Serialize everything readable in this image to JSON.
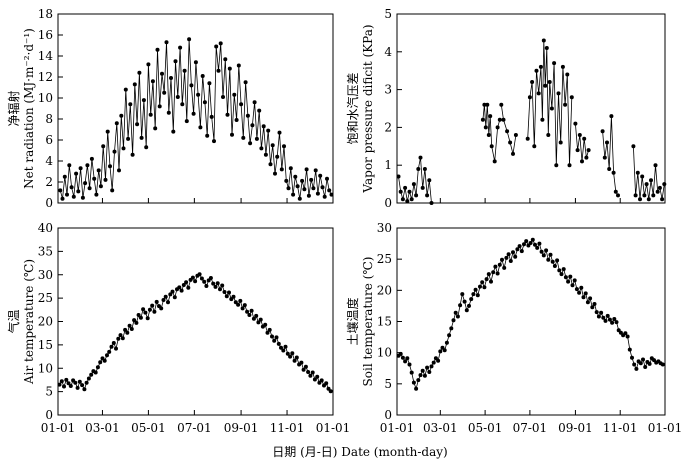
{
  "figure": {
    "shared_xlabel": "日期 (月-日) Date (month-day)",
    "tick_labels": [
      "01-01",
      "03-01",
      "05-01",
      "07-01",
      "09-01",
      "11-01",
      "01-01"
    ]
  },
  "chart_data": [
    {
      "id": "net-radiation",
      "type": "line",
      "ylabel_cn": "净辐射",
      "ylabel_en": "Net radiation (MJ·m⁻²·d⁻¹)",
      "ylim": [
        0,
        18
      ],
      "yticks": [
        0,
        2,
        4,
        6,
        8,
        10,
        12,
        14,
        16,
        18
      ],
      "x_labels": [
        "01-01",
        "03-01",
        "05-01",
        "07-01",
        "09-01",
        "11-01",
        "01-01"
      ],
      "x_label_doy": [
        0,
        59,
        120,
        181,
        243,
        304,
        365
      ],
      "series": [
        {
          "x": [
            3,
            6,
            9,
            12,
            15,
            18,
            21,
            24,
            27,
            30,
            33,
            36,
            39,
            42,
            45,
            48,
            51,
            54,
            57,
            60,
            63,
            66,
            69,
            72,
            75,
            78,
            81,
            84,
            87,
            90,
            93,
            96,
            99,
            102,
            105,
            108,
            111,
            114,
            117,
            120,
            123,
            126,
            129,
            132,
            135,
            138,
            141,
            144,
            147,
            150,
            153,
            156,
            159,
            162,
            165,
            168,
            171,
            174,
            177,
            180,
            183,
            186,
            189,
            192,
            195,
            198,
            201,
            204,
            207,
            210,
            213,
            216,
            219,
            222,
            225,
            228,
            231,
            234,
            237,
            240,
            243,
            246,
            249,
            252,
            255,
            258,
            261,
            264,
            267,
            270,
            273,
            276,
            279,
            282,
            285,
            288,
            291,
            294,
            297,
            300,
            303,
            306,
            309,
            312,
            315,
            318,
            321,
            324,
            327,
            330,
            333,
            336,
            339,
            342,
            345,
            348,
            351,
            354,
            357,
            360,
            363
          ],
          "y": [
            1.2,
            0.4,
            2.5,
            0.8,
            3.6,
            1.5,
            0.6,
            2.8,
            1.1,
            3.3,
            0.5,
            1.9,
            3.6,
            1.4,
            4.2,
            2.3,
            0.8,
            3.1,
            1.6,
            5.4,
            2.2,
            6.8,
            3.5,
            1.2,
            4.9,
            7.6,
            3.1,
            8.3,
            5.2,
            10.8,
            6.1,
            9.4,
            4.6,
            11.3,
            7.5,
            12.4,
            6.2,
            9.8,
            5.3,
            13.2,
            8.4,
            11.6,
            7.1,
            14.6,
            9.2,
            12.3,
            10.5,
            15.3,
            8.6,
            11.9,
            6.8,
            13.5,
            10.1,
            14.8,
            9.4,
            12.6,
            7.8,
            15.6,
            11.2,
            8.5,
            13.4,
            10.3,
            7.2,
            12.1,
            9.6,
            6.4,
            11.4,
            8.2,
            5.9,
            14.9,
            12.6,
            15.2,
            10.1,
            13.7,
            8.4,
            12.8,
            6.5,
            10.3,
            7.9,
            13.1,
            9.4,
            6.2,
            11.5,
            8.3,
            5.7,
            7.4,
            9.6,
            6.1,
            8.8,
            5.2,
            7.3,
            4.6,
            6.9,
            3.7,
            5.5,
            2.8,
            4.4,
            6.7,
            3.2,
            5.4,
            2.1,
            1.4,
            3.3,
            0.8,
            2.5,
            1.6,
            0.4,
            2.1,
            1.3,
            3.2,
            0.7,
            2.2,
            1.4,
            3.1,
            0.9,
            2.6,
            1.5,
            0.6,
            2.3,
            1.2,
            0.8
          ]
        }
      ]
    },
    {
      "id": "vapor-pressure-deficit",
      "type": "line",
      "ylabel_cn": "饱和水汽压差",
      "ylabel_en": "Vapor pressure dificit (KPa)",
      "ylim": [
        0,
        5
      ],
      "yticks": [
        0,
        1,
        2,
        3,
        4,
        5
      ],
      "x_labels": [
        "01-01",
        "03-01",
        "05-01",
        "07-01",
        "09-01",
        "11-01",
        "01-01"
      ],
      "x_label_doy": [
        0,
        59,
        120,
        181,
        243,
        304,
        365
      ],
      "series": [
        {
          "segments": [
            {
              "x": [
                2,
                5,
                8,
                11,
                14,
                17,
                20,
                23,
                26,
                29,
                32,
                35,
                38,
                41,
                44,
                47
              ],
              "y": [
                0.7,
                0.3,
                0.1,
                0.4,
                0.05,
                0.3,
                0.1,
                0.5,
                0.2,
                0.9,
                1.2,
                0.4,
                0.9,
                0.2,
                0.6,
                0.0
              ]
            },
            {
              "x": [
                117,
                119,
                121,
                123,
                125,
                127,
                129,
                133,
                137,
                140
              ],
              "y": [
                2.2,
                2.6,
                2.0,
                2.6,
                1.8,
                2.3,
                1.5,
                1.1,
                2.0,
                2.2
              ]
            },
            {
              "x": [
                142,
                145,
                150,
                154,
                158,
                162
              ],
              "y": [
                2.6,
                2.2,
                1.9,
                1.6,
                1.3,
                1.8
              ]
            },
            {
              "x": [
                178,
                181,
                184,
                187,
                190,
                193,
                196,
                198,
                200,
                202,
                204,
                206,
                208,
                211,
                214,
                217,
                220,
                223,
                226,
                229,
                232,
                235,
                238
              ],
              "y": [
                1.7,
                2.8,
                3.2,
                1.5,
                3.5,
                2.9,
                3.6,
                2.2,
                4.3,
                3.1,
                4.1,
                1.8,
                3.2,
                2.5,
                3.7,
                1.0,
                2.9,
                1.6,
                3.6,
                2.6,
                3.4,
                1.0,
                2.8
              ]
            },
            {
              "x": [
                243,
                246,
                249,
                252,
                255,
                258,
                261
              ],
              "y": [
                2.1,
                1.4,
                1.8,
                1.1,
                1.7,
                1.2,
                1.4
              ]
            },
            {
              "x": [
                280,
                283,
                286,
                289,
                292,
                295,
                298,
                301
              ],
              "y": [
                1.9,
                1.2,
                1.6,
                0.9,
                2.3,
                0.8,
                0.3,
                0.2
              ]
            },
            {
              "x": [
                322,
                325,
                328,
                331,
                334,
                337,
                340,
                343,
                346,
                349,
                352,
                355,
                358,
                361,
                364
              ],
              "y": [
                1.5,
                0.2,
                0.8,
                0.1,
                0.7,
                0.2,
                0.5,
                0.1,
                0.6,
                0.2,
                1.0,
                0.3,
                0.4,
                0.1,
                0.5
              ]
            }
          ]
        }
      ]
    },
    {
      "id": "air-temperature",
      "type": "line",
      "ylabel_cn": "气温",
      "ylabel_en": "Air temperature (℃)",
      "ylim": [
        0,
        40
      ],
      "yticks": [
        0,
        5,
        10,
        15,
        20,
        25,
        30,
        35,
        40
      ],
      "x_labels": [
        "01-01",
        "03-01",
        "05-01",
        "07-01",
        "09-01",
        "11-01",
        "01-01"
      ],
      "x_label_doy": [
        0,
        59,
        120,
        181,
        243,
        304,
        365
      ],
      "series": [
        {
          "x": [
            2,
            5,
            8,
            11,
            14,
            17,
            20,
            23,
            26,
            29,
            32,
            35,
            38,
            41,
            44,
            47,
            50,
            53,
            56,
            59,
            62,
            65,
            68,
            71,
            74,
            77,
            80,
            83,
            86,
            89,
            92,
            95,
            98,
            101,
            104,
            107,
            110,
            113,
            116,
            119,
            122,
            125,
            128,
            131,
            134,
            137,
            140,
            143,
            146,
            149,
            152,
            155,
            158,
            161,
            164,
            167,
            170,
            173,
            176,
            179,
            182,
            185,
            188,
            191,
            194,
            197,
            200,
            203,
            206,
            209,
            212,
            215,
            218,
            221,
            224,
            227,
            230,
            233,
            236,
            239,
            242,
            245,
            248,
            251,
            254,
            257,
            260,
            263,
            266,
            269,
            272,
            275,
            278,
            281,
            284,
            287,
            290,
            293,
            296,
            299,
            302,
            305,
            308,
            311,
            314,
            317,
            320,
            323,
            326,
            329,
            332,
            335,
            338,
            341,
            344,
            347,
            350,
            353,
            356,
            359,
            362
          ],
          "y": [
            6.5,
            7.2,
            6.1,
            7.5,
            6.8,
            6.2,
            7.4,
            6.9,
            5.8,
            7.1,
            6.4,
            5.5,
            6.9,
            7.8,
            8.6,
            9.4,
            9.1,
            10.2,
            11.3,
            12.1,
            11.6,
            12.8,
            13.5,
            14.6,
            15.4,
            14.2,
            16.3,
            17.1,
            16.4,
            18.2,
            17.6,
            19.1,
            18.4,
            20.3,
            19.7,
            21.4,
            20.8,
            22.6,
            21.9,
            20.7,
            22.5,
            23.4,
            22.1,
            24.2,
            23.3,
            22.8,
            24.6,
            25.3,
            24.1,
            25.8,
            26.4,
            25.2,
            26.9,
            27.3,
            26.6,
            27.8,
            28.4,
            27.2,
            28.9,
            29.4,
            28.6,
            29.8,
            30.1,
            29.2,
            28.5,
            27.6,
            28.8,
            29.3,
            28.1,
            27.4,
            28.2,
            26.9,
            27.7,
            26.3,
            25.4,
            26.2,
            24.8,
            25.3,
            24.1,
            23.6,
            24.4,
            22.8,
            23.5,
            22.1,
            21.4,
            22.3,
            20.6,
            21.2,
            19.8,
            20.4,
            18.9,
            19.3,
            17.6,
            18.2,
            16.8,
            15.9,
            16.6,
            15.2,
            14.4,
            13.8,
            14.6,
            13.1,
            12.5,
            13.2,
            11.6,
            12.3,
            10.8,
            11.2,
            9.7,
            10.3,
            9.2,
            8.4,
            9.1,
            7.6,
            8.2,
            6.9,
            7.4,
            6.3,
            6.8,
            5.6,
            5.1
          ]
        }
      ]
    },
    {
      "id": "soil-temperature",
      "type": "line",
      "ylabel_cn": "土壤温度",
      "ylabel_en": "Soil temperature (℃)",
      "ylim": [
        0,
        30
      ],
      "yticks": [
        0,
        5,
        10,
        15,
        20,
        25,
        30
      ],
      "x_labels": [
        "01-01",
        "03-01",
        "05-01",
        "07-01",
        "09-01",
        "11-01",
        "01-01"
      ],
      "x_label_doy": [
        0,
        59,
        120,
        181,
        243,
        304,
        365
      ],
      "series": [
        {
          "x": [
            2,
            5,
            8,
            11,
            14,
            17,
            20,
            23,
            26,
            29,
            32,
            35,
            38,
            41,
            44,
            47,
            50,
            53,
            56,
            59,
            62,
            65,
            68,
            71,
            74,
            77,
            80,
            83,
            86,
            89,
            92,
            95,
            98,
            101,
            104,
            107,
            110,
            113,
            116,
            119,
            122,
            125,
            128,
            131,
            134,
            137,
            140,
            143,
            146,
            149,
            152,
            155,
            158,
            161,
            164,
            167,
            170,
            173,
            176,
            179,
            182,
            185,
            188,
            191,
            194,
            197,
            200,
            203,
            206,
            209,
            212,
            215,
            218,
            221,
            224,
            227,
            230,
            233,
            236,
            239,
            242,
            245,
            248,
            251,
            254,
            257,
            260,
            263,
            266,
            269,
            272,
            275,
            278,
            281,
            284,
            287,
            290,
            293,
            296,
            299,
            302,
            305,
            308,
            311,
            314,
            317,
            320,
            323,
            326,
            329,
            332,
            335,
            338,
            341,
            344,
            347,
            350,
            353,
            356,
            359,
            362
          ],
          "y": [
            9.5,
            9.8,
            9.2,
            8.6,
            9.1,
            8.1,
            6.8,
            5.2,
            4.2,
            5.6,
            6.4,
            7.1,
            6.3,
            7.6,
            6.9,
            7.8,
            8.4,
            9.1,
            8.7,
            10.2,
            10.8,
            10.4,
            11.6,
            12.8,
            13.9,
            15.2,
            16.4,
            15.8,
            17.6,
            19.4,
            18.2,
            16.8,
            17.5,
            18.6,
            19.4,
            20.1,
            19.2,
            20.6,
            21.3,
            20.5,
            21.8,
            22.6,
            21.4,
            22.9,
            23.8,
            22.7,
            24.1,
            24.9,
            23.6,
            25.2,
            25.8,
            24.7,
            26.1,
            25.4,
            26.6,
            27.1,
            26.3,
            27.4,
            27.9,
            27.2,
            27.6,
            28.1,
            27.3,
            26.8,
            27.5,
            26.2,
            25.6,
            26.4,
            24.9,
            25.7,
            24.6,
            23.9,
            24.8,
            23.2,
            22.6,
            23.4,
            22.1,
            21.4,
            22.2,
            20.8,
            21.6,
            20.2,
            19.6,
            20.4,
            18.9,
            19.5,
            18.1,
            18.7,
            17.3,
            17.8,
            16.5,
            15.8,
            16.4,
            15.6,
            15.1,
            15.9,
            15.3,
            14.8,
            15.4,
            14.9,
            13.6,
            13.2,
            12.8,
            13.1,
            12.6,
            10.5,
            9.2,
            8.1,
            7.4,
            8.6,
            8.3,
            8.9,
            7.7,
            8.5,
            8.2,
            9.1,
            8.8,
            8.4,
            8.6,
            8.3,
            8.1
          ]
        }
      ]
    }
  ]
}
